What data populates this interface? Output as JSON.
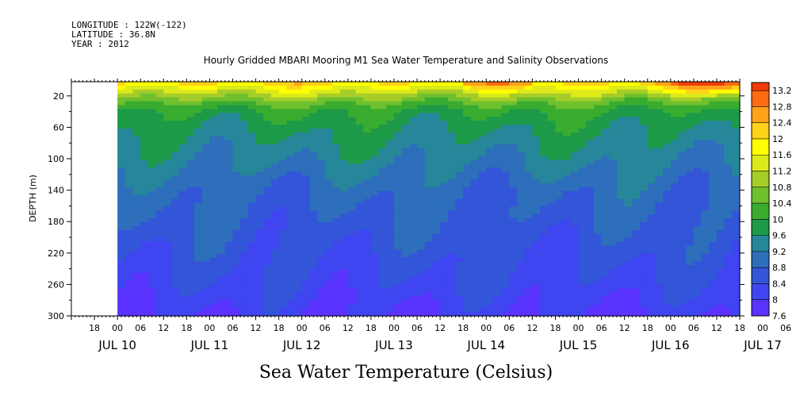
{
  "header": {
    "longitude": "LONGITUDE : 122W(-122)",
    "latitude": "LATITUDE : 36.8N",
    "year": "YEAR : 2012"
  },
  "chart_data": {
    "type": "heatmap",
    "title": "Hourly Gridded MBARI Mooring M1 Sea Water Temperature and Salinity Observations",
    "xlabel": "",
    "ylabel": "DEPTH (m)",
    "colorbar_label": "Sea Water Temperature (Celsius)",
    "y_axis": {
      "ticks": [
        20,
        60,
        100,
        140,
        180,
        220,
        260,
        300
      ],
      "range": [
        300,
        2
      ],
      "reversed": true
    },
    "x_axis": {
      "range_hours": [
        "2012-07-10 12:00",
        "2012-07-17 18:00"
      ],
      "hour_ticks": [
        "18",
        "00",
        "06",
        "12",
        "18",
        "00",
        "06",
        "12",
        "18",
        "00",
        "06",
        "12",
        "18",
        "00",
        "06",
        "12",
        "18",
        "00",
        "06",
        "12",
        "18",
        "00",
        "06",
        "12",
        "18",
        "00",
        "06",
        "12",
        "18",
        "00",
        "06",
        "12",
        "18",
        "00",
        "06",
        "12"
      ],
      "day_labels": [
        "JUL 10",
        "JUL 11",
        "JUL 12",
        "JUL 13",
        "JUL 14",
        "JUL 15",
        "JUL 16",
        "JUL 17"
      ],
      "data_start": "2012-07-11 00:00"
    },
    "colorbar": {
      "levels": [
        7.6,
        8,
        8.4,
        8.8,
        9.2,
        9.6,
        10,
        10.4,
        10.8,
        11.2,
        11.6,
        12,
        12.4,
        12.8,
        13.2
      ],
      "range": [
        7.6,
        13.4
      ]
    },
    "depth_profile": [
      {
        "depth": 2,
        "temp": 12.2
      },
      {
        "depth": 10,
        "temp": 11.6
      },
      {
        "depth": 20,
        "temp": 11.0
      },
      {
        "depth": 30,
        "temp": 10.4
      },
      {
        "depth": 40,
        "temp": 10.0
      },
      {
        "depth": 60,
        "temp": 9.7
      },
      {
        "depth": 80,
        "temp": 9.5
      },
      {
        "depth": 100,
        "temp": 9.3
      },
      {
        "depth": 140,
        "temp": 8.9
      },
      {
        "depth": 180,
        "temp": 8.7
      },
      {
        "depth": 220,
        "temp": 8.5
      },
      {
        "depth": 260,
        "temp": 8.3
      },
      {
        "depth": 300,
        "temp": 8.0
      }
    ]
  }
}
